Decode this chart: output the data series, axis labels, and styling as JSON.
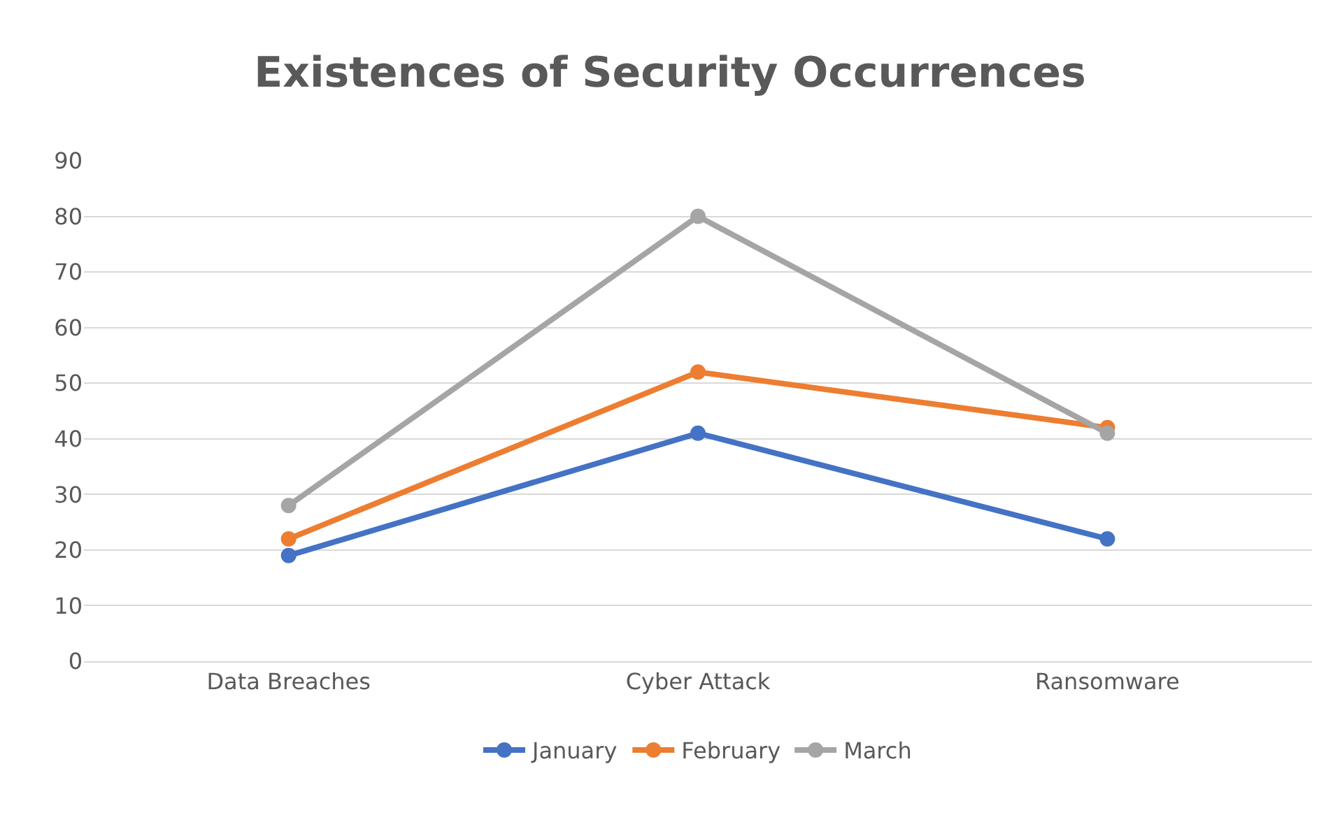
{
  "chart_data": {
    "type": "line",
    "title": "Existences of Security Occurrences",
    "categories": [
      "Data Breaches",
      "Cyber Attack",
      "Ransomware"
    ],
    "series": [
      {
        "name": "January",
        "color": "#4472c4",
        "values": [
          19,
          41,
          22
        ]
      },
      {
        "name": "February",
        "color": "#ed7d31",
        "values": [
          22,
          52,
          42
        ]
      },
      {
        "name": "March",
        "color": "#a5a5a5",
        "values": [
          28,
          80,
          41
        ]
      }
    ],
    "ylim": [
      0,
      90
    ],
    "yticks": [
      0,
      10,
      20,
      30,
      40,
      50,
      60,
      70,
      80,
      90
    ],
    "grid": "y",
    "legend": "bottom",
    "marker": "circle",
    "line_style": "solid"
  }
}
